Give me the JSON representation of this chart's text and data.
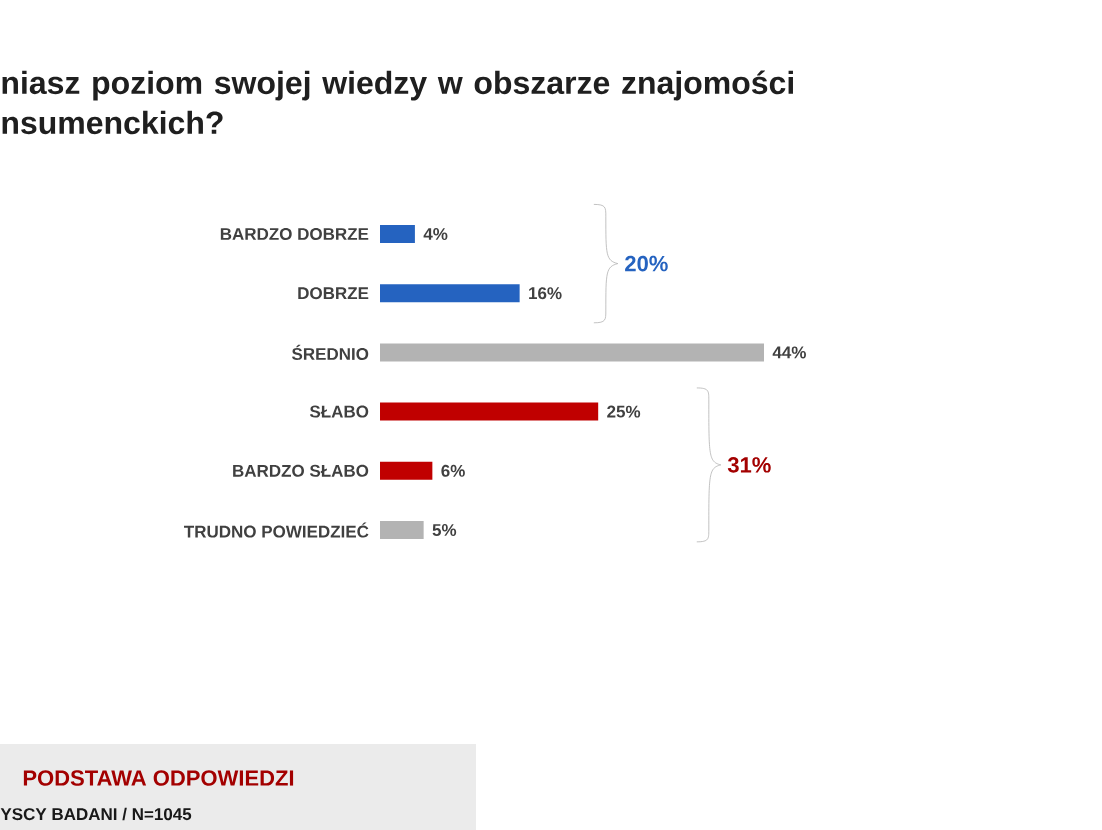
{
  "chart_data": {
    "type": "bar",
    "orientation": "horizontal",
    "title": "niasz poziom swojej wiedzy w obszarze znajomości nsumenckich?",
    "categories": [
      "BARDZO DOBRZE",
      "DOBRZE",
      "ŚREDNIO",
      "SŁABO",
      "BARDZO SŁABO",
      "TRUDNO POWIEDZIEĆ"
    ],
    "values": [
      4,
      16,
      44,
      25,
      6,
      5
    ],
    "colors": [
      "#2563c0",
      "#2563c0",
      "#b3b3b3",
      "#c00000",
      "#c00000",
      "#b3b3b3"
    ],
    "value_labels": [
      "4%",
      "16%",
      "44%",
      "25%",
      "6%",
      "5%"
    ],
    "annotations": [
      "20%",
      "31%",
      "PODSTAWA ODPOWIEDZI",
      "YSCY BADANI / N=1045"
    ]
  }
}
